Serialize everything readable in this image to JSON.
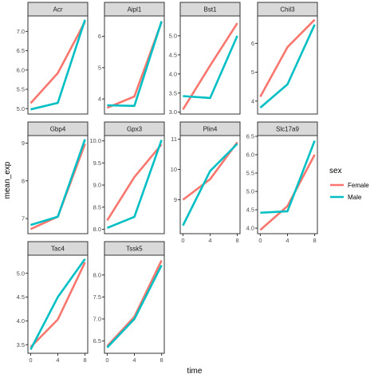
{
  "chart_data": {
    "type": "line",
    "xlabel": "time",
    "ylabel": "mean_exp",
    "legend": {
      "title": "sex",
      "position": "right",
      "entries": [
        {
          "name": "Female",
          "color": "#F8766D"
        },
        {
          "name": "Male",
          "color": "#00BFC4"
        }
      ]
    },
    "x_ticks": [
      0,
      4,
      8
    ],
    "xlim": [
      -0.4,
      8.4
    ],
    "grid": false,
    "facets": [
      {
        "name": "Acr",
        "ylim": [
          4.86,
          7.4
        ],
        "y_ticks": [
          5.0,
          5.5,
          6.0,
          6.5,
          7.0
        ],
        "tick_labels": [
          "5.0",
          "5.5",
          "6.0",
          "6.5",
          "7.0"
        ],
        "series": [
          {
            "name": "Female",
            "x": [
              0,
              4,
              8
            ],
            "y": [
              5.14,
              5.92,
              7.25
            ]
          },
          {
            "name": "Male",
            "x": [
              0,
              4,
              8
            ],
            "y": [
              4.98,
              5.15,
              7.3
            ]
          }
        ]
      },
      {
        "name": "Aipl1",
        "ylim": [
          3.52,
          6.65
        ],
        "y_ticks": [
          4,
          5,
          6
        ],
        "tick_labels": [
          "4",
          "5",
          "6"
        ],
        "series": [
          {
            "name": "Female",
            "x": [
              0,
              4,
              8
            ],
            "y": [
              3.72,
              4.08,
              6.45
            ]
          },
          {
            "name": "Male",
            "x": [
              0,
              4,
              8
            ],
            "y": [
              3.8,
              3.78,
              6.48
            ]
          }
        ]
      },
      {
        "name": "Bst1",
        "ylim": [
          2.95,
          5.52
        ],
        "y_ticks": [
          3.0,
          3.5,
          4.0,
          4.5,
          5.0
        ],
        "tick_labels": [
          "3.0",
          "3.5",
          "4.0",
          "4.5",
          "5.0"
        ],
        "series": [
          {
            "name": "Female",
            "x": [
              0,
              4,
              8
            ],
            "y": [
              3.07,
              4.22,
              5.33
            ]
          },
          {
            "name": "Male",
            "x": [
              0,
              4,
              8
            ],
            "y": [
              3.42,
              3.37,
              5.0
            ]
          }
        ]
      },
      {
        "name": "Chil3",
        "ylim": [
          3.55,
          6.95
        ],
        "y_ticks": [
          4,
          5,
          6
        ],
        "tick_labels": [
          "4",
          "5",
          "6"
        ],
        "series": [
          {
            "name": "Female",
            "x": [
              0,
              4,
              8
            ],
            "y": [
              4.15,
              5.87,
              6.82
            ]
          },
          {
            "name": "Male",
            "x": [
              0,
              4,
              8
            ],
            "y": [
              3.77,
              4.58,
              6.65
            ]
          }
        ]
      },
      {
        "name": "Gbp4",
        "ylim": [
          6.6,
          9.2
        ],
        "y_ticks": [
          7,
          8,
          9
        ],
        "tick_labels": [
          "7",
          "8",
          "9"
        ],
        "series": [
          {
            "name": "Female",
            "x": [
              0,
              4,
              8
            ],
            "y": [
              6.72,
              7.05,
              8.98
            ]
          },
          {
            "name": "Male",
            "x": [
              0,
              4,
              8
            ],
            "y": [
              6.83,
              7.05,
              9.1
            ]
          }
        ]
      },
      {
        "name": "Gpx3",
        "ylim": [
          7.9,
          10.12
        ],
        "y_ticks": [
          8.0,
          8.5,
          9.0,
          9.5,
          10.0
        ],
        "tick_labels": [
          "8.0",
          "8.5",
          "9.0",
          "9.5",
          "10.0"
        ],
        "series": [
          {
            "name": "Female",
            "x": [
              0,
              4,
              8
            ],
            "y": [
              8.2,
              9.18,
              9.92
            ]
          },
          {
            "name": "Male",
            "x": [
              0,
              4,
              8
            ],
            "y": [
              8.03,
              8.28,
              10.02
            ]
          }
        ]
      },
      {
        "name": "Plin4",
        "ylim": [
          7.88,
          11.12
        ],
        "y_ticks": [
          9,
          10,
          11
        ],
        "tick_labels": [
          "9",
          "10",
          "11"
        ],
        "series": [
          {
            "name": "Female",
            "x": [
              0,
              4,
              8
            ],
            "y": [
              9.0,
              9.68,
              10.9
            ]
          },
          {
            "name": "Male",
            "x": [
              0,
              4,
              8
            ],
            "y": [
              8.15,
              9.95,
              10.85
            ]
          }
        ]
      },
      {
        "name": "Slc17a9",
        "ylim": [
          3.85,
          6.52
        ],
        "y_ticks": [
          4.0,
          4.5,
          5.0,
          5.5,
          6.0,
          6.5
        ],
        "tick_labels": [
          "4.0",
          "4.5",
          "5.0",
          "5.5",
          "6.0",
          "6.5"
        ],
        "series": [
          {
            "name": "Female",
            "x": [
              0,
              4,
              8
            ],
            "y": [
              3.95,
              4.6,
              6.0
            ]
          },
          {
            "name": "Male",
            "x": [
              0,
              4,
              8
            ],
            "y": [
              4.42,
              4.46,
              6.38
            ]
          }
        ]
      },
      {
        "name": "Tac4",
        "ylim": [
          3.32,
          5.38
        ],
        "y_ticks": [
          3.5,
          4.0,
          4.5,
          5.0
        ],
        "tick_labels": [
          "3.5",
          "4.0",
          "4.5",
          "5.0"
        ],
        "series": [
          {
            "name": "Female",
            "x": [
              0,
              4,
              8
            ],
            "y": [
              3.45,
              4.03,
              5.23
            ]
          },
          {
            "name": "Male",
            "x": [
              0,
              4,
              8
            ],
            "y": [
              3.4,
              4.5,
              5.3
            ]
          }
        ]
      },
      {
        "name": "Tssk5",
        "ylim": [
          6.22,
          8.45
        ],
        "y_ticks": [
          6.5,
          7.0,
          7.5,
          8.0
        ],
        "tick_labels": [
          "6.5",
          "7.0",
          "7.5",
          "8.0"
        ],
        "series": [
          {
            "name": "Female",
            "x": [
              0,
              4,
              8
            ],
            "y": [
              6.38,
              7.05,
              8.33
            ]
          },
          {
            "name": "Male",
            "x": [
              0,
              4,
              8
            ],
            "y": [
              6.35,
              7.0,
              8.22
            ]
          }
        ]
      }
    ]
  }
}
